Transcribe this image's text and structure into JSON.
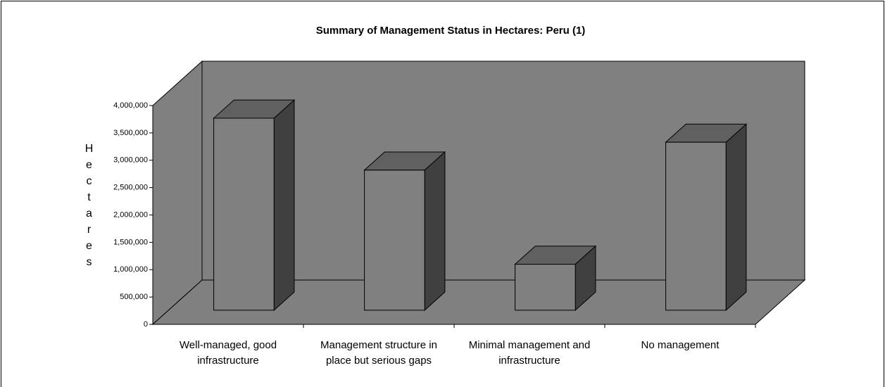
{
  "chart_data": {
    "type": "bar3d",
    "title": "Summary of Management Status in Hectares: Peru (1)",
    "y_label": "Hectares",
    "categories": [
      "Well-managed, good infrastructure",
      "Management structure in place but serious gaps",
      "Minimal management and infrastructure",
      "No management"
    ],
    "values": [
      3510000,
      2560000,
      840000,
      3070000
    ],
    "color": "#808080",
    "ylim": [
      0,
      4000000
    ],
    "yticks": [
      0,
      {
        "value": 500000,
        "label": "500,000"
      },
      {
        "value": 1000000,
        "label": "1,000,000"
      },
      {
        "value": 1500000,
        "label": "1,500,000"
      },
      {
        "value": 2000000,
        "label": "2,000,000"
      },
      {
        "value": 2500000,
        "label": "2,500,000"
      },
      {
        "value": 3000000,
        "label": "3,000,000"
      },
      {
        "value": 3500000,
        "label": "3,500,000"
      },
      {
        "value": 4000000,
        "label": "4,000,000"
      }
    ]
  }
}
